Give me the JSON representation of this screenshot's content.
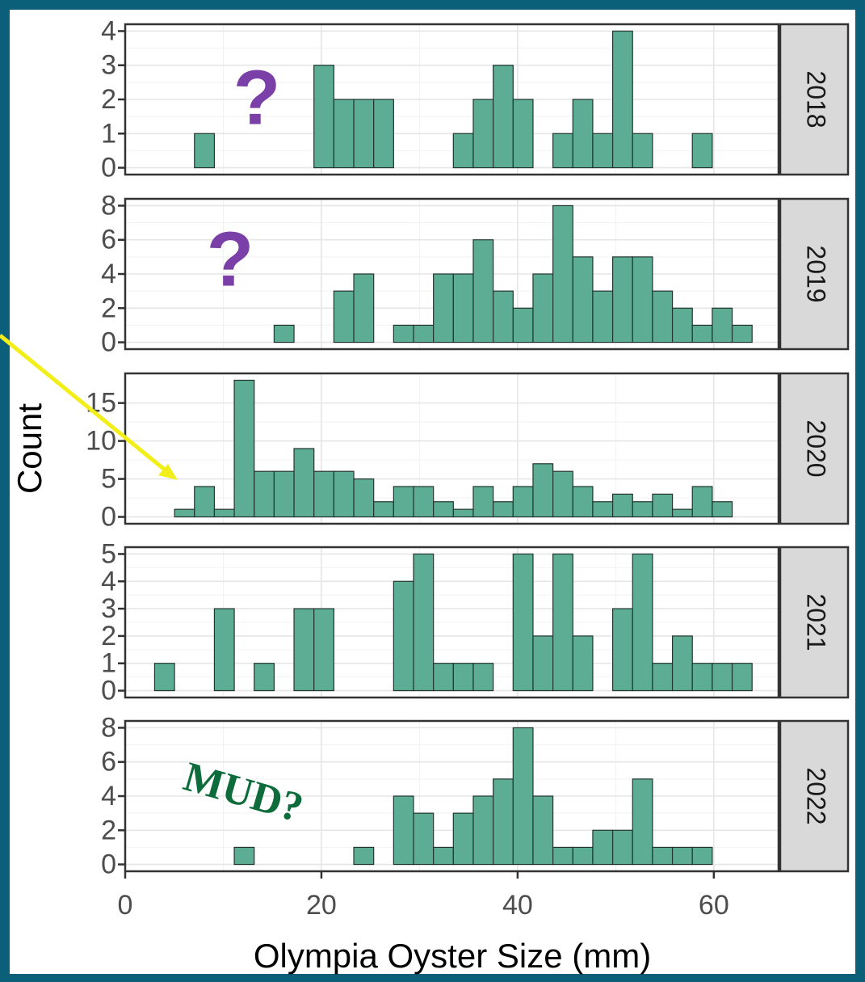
{
  "chart_data": {
    "type": "histogram",
    "x_label": "Olympia Oyster Size (mm)",
    "y_label": "Count",
    "bins": [
      3.0,
      5.03,
      7.06,
      9.09,
      11.12,
      13.15,
      15.18,
      17.21,
      19.24,
      21.27,
      23.3,
      25.33,
      27.36,
      29.39,
      31.42,
      33.45,
      35.48,
      37.51,
      39.54,
      41.57,
      43.6,
      45.63,
      47.66,
      49.69,
      51.72,
      53.75,
      55.78,
      57.81,
      59.84,
      61.87,
      63.9
    ],
    "color": "#5cad93",
    "xlim": [
      0,
      66.6
    ],
    "xticks": [
      0,
      20,
      40,
      60
    ],
    "grid": true,
    "facets": [
      {
        "label": "2018",
        "values": [
          0,
          0,
          1,
          0,
          0,
          0,
          0,
          0,
          3,
          2,
          2,
          2,
          0,
          0,
          0,
          1,
          2,
          3,
          2,
          0,
          1,
          2,
          1,
          4,
          1,
          0,
          0,
          1,
          0,
          0
        ],
        "ylim": [
          -0.2,
          4.2
        ],
        "yticks": [
          0,
          1,
          2,
          3,
          4
        ]
      },
      {
        "label": "2019",
        "values": [
          0,
          0,
          0,
          0,
          0,
          0,
          1,
          0,
          0,
          3,
          4,
          0,
          1,
          1,
          4,
          4,
          6,
          3,
          2,
          4,
          8,
          5,
          3,
          5,
          5,
          3,
          2,
          1,
          2,
          1
        ],
        "ylim": [
          -0.4,
          8.4
        ],
        "yticks": [
          0,
          2,
          4,
          6,
          8
        ]
      },
      {
        "label": "2020",
        "values": [
          0,
          1,
          4,
          1,
          18,
          6,
          6,
          9,
          6,
          6,
          5,
          2,
          4,
          4,
          2,
          1,
          4,
          2,
          4,
          7,
          6,
          4,
          2,
          3,
          2,
          3,
          1,
          4,
          2,
          0
        ],
        "ylim": [
          -0.9,
          18.9
        ],
        "yticks": [
          0,
          5,
          10,
          15
        ]
      },
      {
        "label": "2021",
        "values": [
          1,
          0,
          0,
          3,
          0,
          1,
          0,
          3,
          3,
          0,
          0,
          0,
          4,
          5,
          1,
          1,
          1,
          0,
          5,
          2,
          5,
          2,
          0,
          3,
          5,
          1,
          2,
          1,
          1,
          1
        ],
        "ylim": [
          -0.25,
          5.25
        ],
        "yticks": [
          0,
          1,
          2,
          3,
          4,
          5
        ]
      },
      {
        "label": "2022",
        "values": [
          0,
          0,
          0,
          0,
          1,
          0,
          0,
          0,
          0,
          0,
          1,
          0,
          4,
          3,
          1,
          3,
          4,
          5,
          8,
          4,
          1,
          1,
          2,
          2,
          5,
          1,
          1,
          1,
          0,
          0
        ],
        "ylim": [
          -0.4,
          8.4
        ],
        "yticks": [
          0,
          2,
          4,
          6,
          8
        ]
      }
    ],
    "annotations": [
      "?",
      "?",
      "MUD?"
    ]
  }
}
